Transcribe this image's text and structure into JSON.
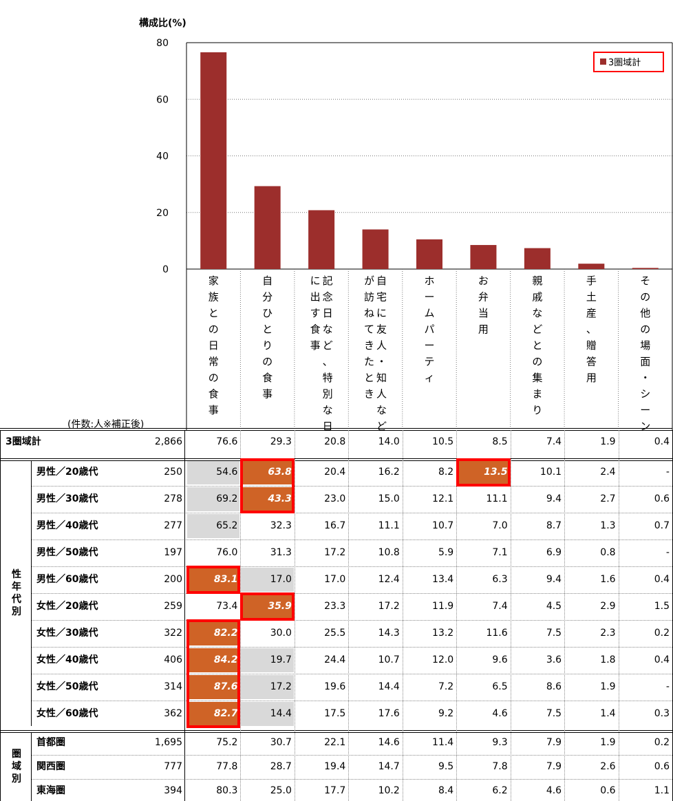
{
  "chart_data": {
    "type": "bar",
    "ylabel": "構成比(%)",
    "ylim": [
      0,
      80
    ],
    "yticks": [
      "0",
      "20",
      "40",
      "60",
      "80"
    ],
    "legend": "3圏域計",
    "legend_position": "top-right",
    "bar_color": "#9c2e2c",
    "categories": [
      "家族との日常の食事",
      "自分ひとりの食事",
      "記念日など、特別な日に出す食事",
      "自宅に友人・知人などが訪ねてきたとき",
      "ホームパーティ",
      "お弁当用",
      "親戚などとの集まり",
      "手土産、贈答用",
      "その他の場面・シーン"
    ],
    "category_lines": [
      [
        "家族との日常の食事"
      ],
      [
        "自分ひとりの食事"
      ],
      [
        "記念日など、特別な日",
        "に出す食事"
      ],
      [
        "自宅に友人・知人など",
        "が訪ねてきたとき"
      ],
      [
        "ホームパーティ"
      ],
      [
        "お弁当用"
      ],
      [
        "親戚などとの集まり"
      ],
      [
        "手土産、贈答用"
      ],
      [
        "その他の場面・シーン"
      ]
    ],
    "values": [
      76.6,
      29.3,
      20.8,
      14.0,
      10.5,
      8.5,
      7.4,
      1.9,
      0.4
    ]
  },
  "table": {
    "count_header": "(件数:人※補正後)",
    "groups": [
      {
        "label": "",
        "rows": [
          {
            "label": "3圏域計",
            "n": "2,866",
            "cells": [
              "76.6",
              "29.3",
              "20.8",
              "14.0",
              "10.5",
              "8.5",
              "7.4",
              "1.9",
              "0.4"
            ],
            "hl": [
              "",
              "",
              "",
              "",
              "",
              "",
              "",
              "",
              ""
            ]
          }
        ]
      },
      {
        "label": "性年代別",
        "rows": [
          {
            "label": "男性／20歳代",
            "n": "250",
            "cells": [
              "54.6",
              "63.8",
              "20.4",
              "16.2",
              "8.2",
              "13.5",
              "10.1",
              "2.4",
              "-"
            ],
            "hl": [
              "g",
              "o",
              "",
              "",
              "",
              "o",
              "",
              "",
              ""
            ]
          },
          {
            "label": "男性／30歳代",
            "n": "278",
            "cells": [
              "69.2",
              "43.3",
              "23.0",
              "15.0",
              "12.1",
              "11.1",
              "9.4",
              "2.7",
              "0.6"
            ],
            "hl": [
              "g",
              "o",
              "",
              "",
              "",
              "",
              "",
              "",
              ""
            ]
          },
          {
            "label": "男性／40歳代",
            "n": "277",
            "cells": [
              "65.2",
              "32.3",
              "16.7",
              "11.1",
              "10.7",
              "7.0",
              "8.7",
              "1.3",
              "0.7"
            ],
            "hl": [
              "g",
              "",
              "",
              "",
              "",
              "",
              "",
              "",
              ""
            ]
          },
          {
            "label": "男性／50歳代",
            "n": "197",
            "cells": [
              "76.0",
              "31.3",
              "17.2",
              "10.8",
              "5.9",
              "7.1",
              "6.9",
              "0.8",
              "-"
            ],
            "hl": [
              "",
              "",
              "",
              "",
              "",
              "",
              "",
              "",
              ""
            ]
          },
          {
            "label": "男性／60歳代",
            "n": "200",
            "cells": [
              "83.1",
              "17.0",
              "17.0",
              "12.4",
              "13.4",
              "6.3",
              "9.4",
              "1.6",
              "0.4"
            ],
            "hl": [
              "o",
              "g",
              "",
              "",
              "",
              "",
              "",
              "",
              ""
            ]
          },
          {
            "label": "女性／20歳代",
            "n": "259",
            "cells": [
              "73.4",
              "35.9",
              "23.3",
              "17.2",
              "11.9",
              "7.4",
              "4.5",
              "2.9",
              "1.5"
            ],
            "hl": [
              "",
              "o",
              "",
              "",
              "",
              "",
              "",
              "",
              ""
            ]
          },
          {
            "label": "女性／30歳代",
            "n": "322",
            "cells": [
              "82.2",
              "30.0",
              "25.5",
              "14.3",
              "13.2",
              "11.6",
              "7.5",
              "2.3",
              "0.2"
            ],
            "hl": [
              "o",
              "",
              "",
              "",
              "",
              "",
              "",
              "",
              ""
            ]
          },
          {
            "label": "女性／40歳代",
            "n": "406",
            "cells": [
              "84.2",
              "19.7",
              "24.4",
              "10.7",
              "12.0",
              "9.6",
              "3.6",
              "1.8",
              "0.4"
            ],
            "hl": [
              "o",
              "g",
              "",
              "",
              "",
              "",
              "",
              "",
              ""
            ]
          },
          {
            "label": "女性／50歳代",
            "n": "314",
            "cells": [
              "87.6",
              "17.2",
              "19.6",
              "14.4",
              "7.2",
              "6.5",
              "8.6",
              "1.9",
              "-"
            ],
            "hl": [
              "o",
              "g",
              "",
              "",
              "",
              "",
              "",
              "",
              ""
            ]
          },
          {
            "label": "女性／60歳代",
            "n": "362",
            "cells": [
              "82.7",
              "14.4",
              "17.5",
              "17.6",
              "9.2",
              "4.6",
              "7.5",
              "1.4",
              "0.3"
            ],
            "hl": [
              "o",
              "g",
              "",
              "",
              "",
              "",
              "",
              "",
              ""
            ]
          }
        ]
      },
      {
        "label": "圏域別",
        "rows": [
          {
            "label": "首都圏",
            "n": "1,695",
            "cells": [
              "75.2",
              "30.7",
              "22.1",
              "14.6",
              "11.4",
              "9.3",
              "7.9",
              "1.9",
              "0.2"
            ],
            "hl": [
              "",
              "",
              "",
              "",
              "",
              "",
              "",
              "",
              ""
            ]
          },
          {
            "label": "関西圏",
            "n": "777",
            "cells": [
              "77.8",
              "28.7",
              "19.4",
              "14.7",
              "9.5",
              "7.8",
              "7.9",
              "2.6",
              "0.6"
            ],
            "hl": [
              "",
              "",
              "",
              "",
              "",
              "",
              "",
              "",
              ""
            ]
          },
          {
            "label": "東海圏",
            "n": "394",
            "cells": [
              "80.3",
              "25.0",
              "17.7",
              "10.2",
              "8.4",
              "6.2",
              "4.6",
              "0.6",
              "1.1"
            ],
            "hl": [
              "",
              "",
              "",
              "",
              "",
              "",
              "",
              "",
              ""
            ]
          }
        ]
      }
    ]
  }
}
